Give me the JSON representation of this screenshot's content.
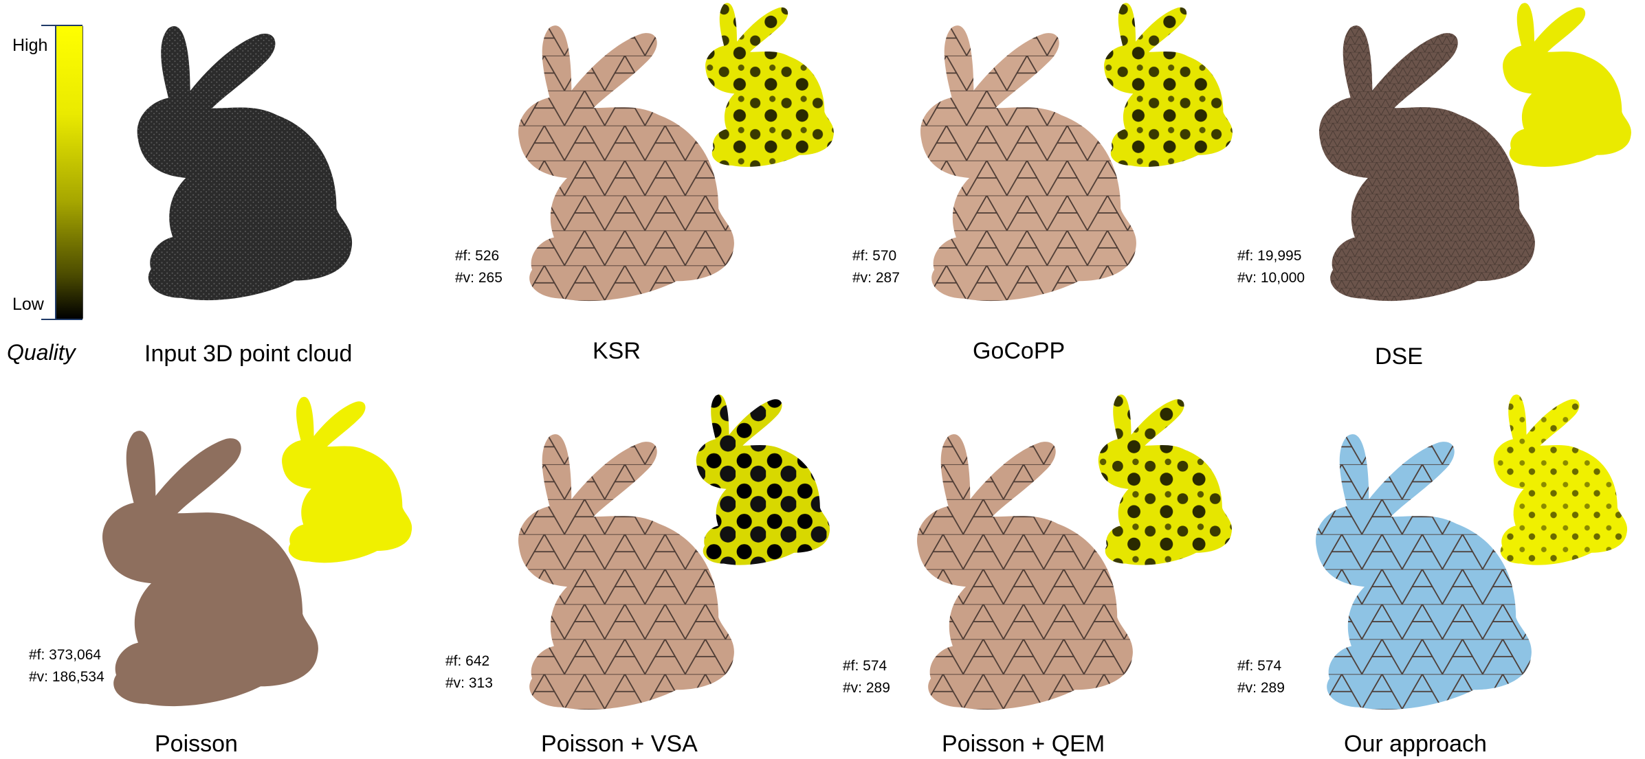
{
  "quality_scale": {
    "title": "Quality",
    "high_label": "High",
    "low_label": "Low",
    "colors": {
      "high": "#ffff00",
      "low": "#000000"
    }
  },
  "top_row": [
    {
      "caption": "Input 3D point cloud",
      "faces": "",
      "vertices": ""
    },
    {
      "caption": "KSR",
      "faces": "#f: 526",
      "vertices": "#v: 265"
    },
    {
      "caption": "GoCoPP",
      "faces": "#f: 570",
      "vertices": "#v: 287"
    },
    {
      "caption": "DSE",
      "faces": "#f: 19,995",
      "vertices": "#v: 10,000"
    }
  ],
  "bottom_row": [
    {
      "caption": "Poisson",
      "faces": "#f: 373,064",
      "vertices": "#v: 186,534"
    },
    {
      "caption": "Poisson + VSA",
      "faces": "#f: 642",
      "vertices": "#v: 313"
    },
    {
      "caption": "Poisson + QEM",
      "faces": "#f: 574",
      "vertices": "#v: 289"
    },
    {
      "caption": "Our approach",
      "faces": "#f: 574",
      "vertices": "#v: 289"
    }
  ],
  "mesh_colors": {
    "point_cloud": "#3a3a3a",
    "tan_mesh": "#c9a088",
    "dark_mesh": "#6b544b",
    "poisson_mesh": "#8e6f5e",
    "our_mesh": "#8ec3e4",
    "quality_map": "#e8e800"
  }
}
